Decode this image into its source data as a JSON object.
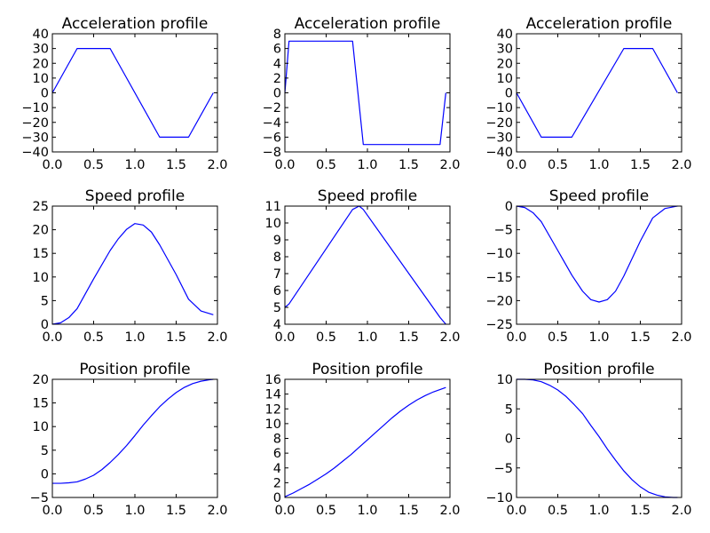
{
  "chart_data": [
    {
      "type": "line",
      "title": "Acceleration profile",
      "xlim": [
        0,
        2
      ],
      "ylim": [
        -40,
        40
      ],
      "xticks": [
        "0.0",
        "0.5",
        "1.0",
        "1.5",
        "2.0"
      ],
      "yticks": [
        "40",
        "30",
        "20",
        "10",
        "0",
        "−10",
        "−20",
        "−30",
        "−40"
      ],
      "series": [
        {
          "x": [
            0,
            0.3,
            0.7,
            1.3,
            1.65,
            1.95
          ],
          "y": [
            0,
            30,
            30,
            -30,
            -30,
            0
          ]
        }
      ]
    },
    {
      "type": "line",
      "title": "Acceleration profile",
      "xlim": [
        0,
        2
      ],
      "ylim": [
        -8,
        8
      ],
      "xticks": [
        "0.0",
        "0.5",
        "1.0",
        "1.5",
        "2.0"
      ],
      "yticks": [
        "8",
        "6",
        "4",
        "2",
        "0",
        "−2",
        "−4",
        "−6",
        "−8"
      ],
      "series": [
        {
          "x": [
            0,
            0.05,
            0.82,
            0.95,
            1.88,
            1.95
          ],
          "y": [
            0,
            7,
            7,
            -7,
            -7,
            0
          ]
        }
      ]
    },
    {
      "type": "line",
      "title": "Acceleration profile",
      "xlim": [
        0,
        2
      ],
      "ylim": [
        -40,
        40
      ],
      "xticks": [
        "0.0",
        "0.5",
        "1.0",
        "1.5",
        "2.0"
      ],
      "yticks": [
        "40",
        "30",
        "20",
        "10",
        "0",
        "−10",
        "−20",
        "−30",
        "−40"
      ],
      "series": [
        {
          "x": [
            0,
            0.3,
            0.67,
            1.3,
            1.65,
            1.95
          ],
          "y": [
            0,
            -30,
            -30,
            30,
            30,
            0
          ]
        }
      ]
    },
    {
      "type": "line",
      "title": "Speed profile",
      "xlim": [
        0,
        2
      ],
      "ylim": [
        0,
        25
      ],
      "xticks": [
        "0.0",
        "0.5",
        "1.0",
        "1.5",
        "2.0"
      ],
      "yticks": [
        "25",
        "20",
        "15",
        "10",
        "5",
        "0"
      ],
      "series": [
        {
          "x": [
            0,
            0.1,
            0.2,
            0.3,
            0.5,
            0.7,
            0.8,
            0.9,
            1.0,
            1.1,
            1.2,
            1.3,
            1.5,
            1.65,
            1.8,
            1.95
          ],
          "y": [
            0,
            0.3,
            1.4,
            3.3,
            9.6,
            15.6,
            18.1,
            20.1,
            21.3,
            21.0,
            19.5,
            16.8,
            10.5,
            5.3,
            2.8,
            2.0
          ]
        }
      ]
    },
    {
      "type": "line",
      "title": "Speed profile",
      "xlim": [
        0,
        2
      ],
      "ylim": [
        4,
        11
      ],
      "xticks": [
        "0.0",
        "0.5",
        "1.0",
        "1.5",
        "2.0"
      ],
      "yticks": [
        "11",
        "10",
        "9",
        "8",
        "7",
        "6",
        "5",
        "4"
      ],
      "series": [
        {
          "x": [
            0,
            0.05,
            0.82,
            0.9,
            0.95,
            1.88,
            1.95
          ],
          "y": [
            5.0,
            5.2,
            10.8,
            11.0,
            10.8,
            4.4,
            4.0
          ]
        }
      ]
    },
    {
      "type": "line",
      "title": "Speed profile",
      "xlim": [
        0,
        2
      ],
      "ylim": [
        -25,
        0
      ],
      "xticks": [
        "0.0",
        "0.5",
        "1.0",
        "1.5",
        "2.0"
      ],
      "yticks": [
        "0",
        "−5",
        "−10",
        "−15",
        "−20",
        "−25"
      ],
      "series": [
        {
          "x": [
            0,
            0.1,
            0.2,
            0.3,
            0.5,
            0.67,
            0.8,
            0.9,
            1.0,
            1.1,
            1.2,
            1.3,
            1.5,
            1.65,
            1.8,
            1.95
          ],
          "y": [
            0,
            -0.3,
            -1.4,
            -3.3,
            -9.4,
            -14.6,
            -18.0,
            -19.8,
            -20.3,
            -19.8,
            -18.0,
            -14.8,
            -7.4,
            -2.5,
            -0.5,
            0
          ]
        }
      ]
    },
    {
      "type": "line",
      "title": "Position profile",
      "xlim": [
        0,
        2
      ],
      "ylim": [
        -5,
        20
      ],
      "xticks": [
        "0.0",
        "0.5",
        "1.0",
        "1.5",
        "2.0"
      ],
      "yticks": [
        "20",
        "15",
        "10",
        "5",
        "0",
        "−5"
      ],
      "series": [
        {
          "x": [
            0,
            0.1,
            0.2,
            0.3,
            0.4,
            0.5,
            0.6,
            0.7,
            0.8,
            0.9,
            1.0,
            1.1,
            1.2,
            1.3,
            1.4,
            1.5,
            1.6,
            1.7,
            1.8,
            1.9,
            1.95
          ],
          "y": [
            -2.0,
            -2.0,
            -1.9,
            -1.7,
            -1.1,
            -0.3,
            0.9,
            2.4,
            4.1,
            6.0,
            8.1,
            10.3,
            12.3,
            14.2,
            15.8,
            17.2,
            18.3,
            19.1,
            19.6,
            19.9,
            20.0
          ]
        }
      ]
    },
    {
      "type": "line",
      "title": "Position profile",
      "xlim": [
        0,
        2
      ],
      "ylim": [
        0,
        16
      ],
      "xticks": [
        "0.0",
        "0.5",
        "1.0",
        "1.5",
        "2.0"
      ],
      "yticks": [
        "16",
        "14",
        "12",
        "10",
        "8",
        "6",
        "4",
        "2",
        "0"
      ],
      "series": [
        {
          "x": [
            0,
            0.1,
            0.2,
            0.3,
            0.4,
            0.5,
            0.6,
            0.7,
            0.8,
            0.9,
            1.0,
            1.1,
            1.2,
            1.3,
            1.4,
            1.5,
            1.6,
            1.7,
            1.8,
            1.95
          ],
          "y": [
            0.1,
            0.6,
            1.2,
            1.8,
            2.5,
            3.2,
            4.0,
            4.9,
            5.8,
            6.8,
            7.8,
            8.8,
            9.8,
            10.8,
            11.7,
            12.5,
            13.2,
            13.8,
            14.3,
            14.9
          ]
        }
      ]
    },
    {
      "type": "line",
      "title": "Position profile",
      "xlim": [
        0,
        2
      ],
      "ylim": [
        -10,
        10
      ],
      "xticks": [
        "0.0",
        "0.5",
        "1.0",
        "1.5",
        "2.0"
      ],
      "yticks": [
        "10",
        "5",
        "0",
        "−5",
        "−10"
      ],
      "series": [
        {
          "x": [
            0,
            0.1,
            0.2,
            0.3,
            0.4,
            0.5,
            0.6,
            0.7,
            0.8,
            0.9,
            1.0,
            1.1,
            1.2,
            1.3,
            1.4,
            1.5,
            1.6,
            1.7,
            1.8,
            1.9,
            1.95
          ],
          "y": [
            10.0,
            10.0,
            9.9,
            9.6,
            9.0,
            8.2,
            7.1,
            5.7,
            4.2,
            2.2,
            0.3,
            -1.8,
            -3.7,
            -5.5,
            -7.0,
            -8.2,
            -9.1,
            -9.6,
            -9.9,
            -10.0,
            -10.0
          ]
        }
      ]
    }
  ]
}
